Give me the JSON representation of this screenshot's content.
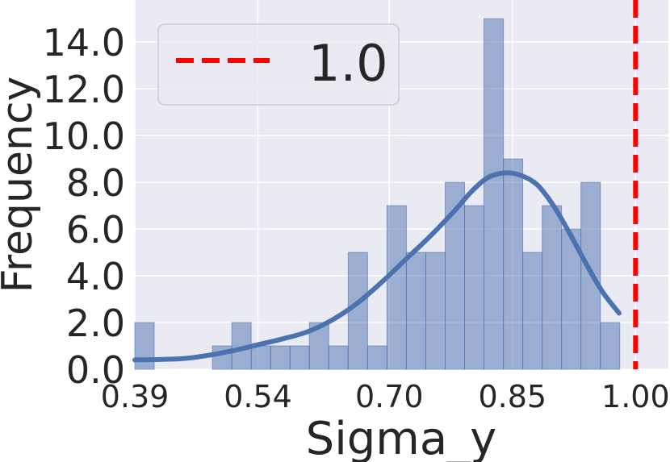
{
  "chart_data": {
    "type": "histogram",
    "xlabel": "Sigma_y",
    "ylabel": "Frequency",
    "x_ticks": [
      "0.39",
      "0.54",
      "0.70",
      "0.85",
      "1.00"
    ],
    "x_tick_values": [
      0.39,
      0.54,
      0.7,
      0.85,
      1.0
    ],
    "y_ticks": [
      "0.0",
      "2.0",
      "4.0",
      "6.0",
      "8.0",
      "10.0",
      "12.0",
      "14.0"
    ],
    "y_tick_values": [
      0,
      2,
      4,
      6,
      8,
      10,
      12,
      14
    ],
    "xlim": [
      0.39,
      1.04
    ],
    "ylim": [
      0,
      15.8
    ],
    "grid": true,
    "bin_start": 0.39,
    "bin_width": 0.02363,
    "counts": [
      2,
      0,
      0,
      0,
      1,
      2,
      1,
      1,
      1,
      2,
      1,
      5,
      1,
      7,
      5,
      5,
      8,
      7,
      15,
      9,
      5,
      7,
      6,
      8,
      2
    ],
    "kde": {
      "x": [
        0.39,
        0.42,
        0.45,
        0.48,
        0.51,
        0.54,
        0.57,
        0.6,
        0.63,
        0.66,
        0.69,
        0.72,
        0.75,
        0.78,
        0.8,
        0.82,
        0.84,
        0.86,
        0.88,
        0.9,
        0.92,
        0.94,
        0.96,
        0.98
      ],
      "y": [
        0.4,
        0.42,
        0.46,
        0.6,
        0.8,
        1.05,
        1.3,
        1.6,
        2.1,
        2.8,
        3.7,
        4.7,
        5.7,
        6.8,
        7.6,
        8.2,
        8.4,
        8.3,
        7.9,
        7.0,
        5.8,
        4.5,
        3.3,
        2.4
      ]
    },
    "reference_line": {
      "x": 1.0,
      "label": "1.0",
      "color": "#ff0000"
    },
    "legend_placement": "top-left",
    "colors": {
      "bars": "#4c72b0",
      "kde": "#4c72b0",
      "background": "#eaeaf2",
      "grid": "#ffffff"
    }
  }
}
